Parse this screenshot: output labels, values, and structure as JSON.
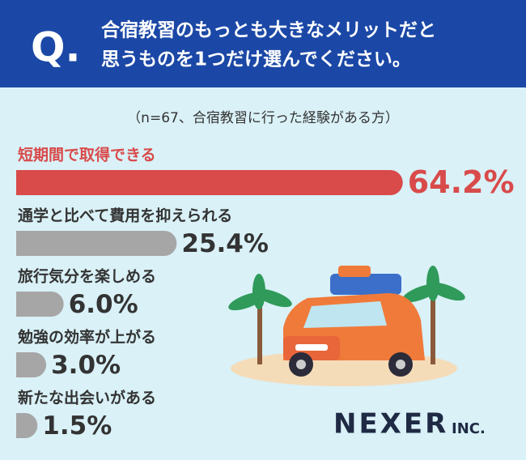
{
  "header": {
    "mark": "Q.",
    "question": [
      "合宿教習のもっとも大きなメリットだと",
      "思うものを1つだけ選んでください。"
    ]
  },
  "chart_data": {
    "type": "bar",
    "subtitle": "（n=67、合宿教習に行った経験がある方）",
    "categories": [
      "短期間で取得できる",
      "通学と比べて費用を抑えられる",
      "旅行気分を楽しめる",
      "勉強の効率が上がる",
      "新たな出会いがある"
    ],
    "values": [
      64.2,
      25.4,
      6.0,
      3.0,
      1.5
    ],
    "value_labels": [
      "64.2%",
      "25.4%",
      "6.0%",
      "3.0%",
      "1.5%"
    ],
    "colors": [
      "#d94a4a",
      "#a6a6a6",
      "#a6a6a6",
      "#a6a6a6",
      "#a6a6a6"
    ]
  },
  "logo": {
    "name": "NEXER",
    "suffix": "INC."
  }
}
